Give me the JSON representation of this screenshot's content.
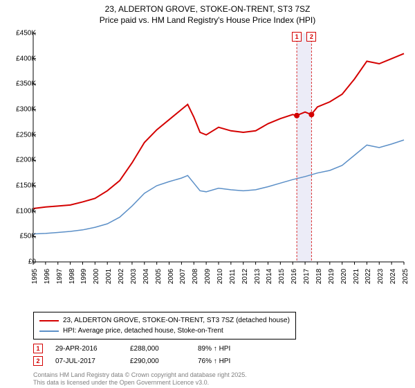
{
  "title_line1": "23, ALDERTON GROVE, STOKE-ON-TRENT, ST3 7SZ",
  "title_line2": "Price paid vs. HM Land Registry's House Price Index (HPI)",
  "chart": {
    "type": "line",
    "background_color": "#ffffff",
    "grid_color": "#000000",
    "axis_color": "#000000",
    "ylim": [
      0,
      450000
    ],
    "ytick_step": 50000,
    "y_ticks": [
      "£0",
      "£50K",
      "£100K",
      "£150K",
      "£200K",
      "£250K",
      "£300K",
      "£350K",
      "£400K",
      "£450K"
    ],
    "x_range": [
      1995,
      2025
    ],
    "x_ticks": [
      "1995",
      "1996",
      "1997",
      "1998",
      "1999",
      "2000",
      "2001",
      "2002",
      "2003",
      "2004",
      "2005",
      "2006",
      "2007",
      "2008",
      "2009",
      "2010",
      "2011",
      "2012",
      "2013",
      "2014",
      "2015",
      "2016",
      "2017",
      "2018",
      "2019",
      "2020",
      "2021",
      "2022",
      "2023",
      "2024",
      "2025"
    ],
    "label_fontsize": 10,
    "series": [
      {
        "name": "price_paid",
        "color": "#d40000",
        "line_width": 2,
        "data": [
          [
            1995,
            105000
          ],
          [
            1996,
            108000
          ],
          [
            1997,
            110000
          ],
          [
            1998,
            112000
          ],
          [
            1999,
            118000
          ],
          [
            2000,
            125000
          ],
          [
            2001,
            140000
          ],
          [
            2002,
            160000
          ],
          [
            2003,
            195000
          ],
          [
            2004,
            235000
          ],
          [
            2005,
            260000
          ],
          [
            2006,
            280000
          ],
          [
            2007,
            300000
          ],
          [
            2007.5,
            310000
          ],
          [
            2008,
            285000
          ],
          [
            2008.5,
            255000
          ],
          [
            2009,
            250000
          ],
          [
            2010,
            265000
          ],
          [
            2011,
            258000
          ],
          [
            2012,
            255000
          ],
          [
            2013,
            258000
          ],
          [
            2014,
            272000
          ],
          [
            2015,
            282000
          ],
          [
            2016,
            290000
          ],
          [
            2016.3,
            288000
          ],
          [
            2017,
            295000
          ],
          [
            2017.5,
            290000
          ],
          [
            2018,
            305000
          ],
          [
            2019,
            315000
          ],
          [
            2020,
            330000
          ],
          [
            2021,
            360000
          ],
          [
            2022,
            395000
          ],
          [
            2023,
            390000
          ],
          [
            2024,
            400000
          ],
          [
            2025,
            410000
          ]
        ]
      },
      {
        "name": "hpi",
        "color": "#5b8fc7",
        "line_width": 1.5,
        "data": [
          [
            1995,
            55000
          ],
          [
            1996,
            56000
          ],
          [
            1997,
            58000
          ],
          [
            1998,
            60000
          ],
          [
            1999,
            63000
          ],
          [
            2000,
            68000
          ],
          [
            2001,
            75000
          ],
          [
            2002,
            88000
          ],
          [
            2003,
            110000
          ],
          [
            2004,
            135000
          ],
          [
            2005,
            150000
          ],
          [
            2006,
            158000
          ],
          [
            2007,
            165000
          ],
          [
            2007.5,
            170000
          ],
          [
            2008,
            155000
          ],
          [
            2008.5,
            140000
          ],
          [
            2009,
            138000
          ],
          [
            2010,
            145000
          ],
          [
            2011,
            142000
          ],
          [
            2012,
            140000
          ],
          [
            2013,
            142000
          ],
          [
            2014,
            148000
          ],
          [
            2015,
            155000
          ],
          [
            2016,
            162000
          ],
          [
            2017,
            168000
          ],
          [
            2018,
            175000
          ],
          [
            2019,
            180000
          ],
          [
            2020,
            190000
          ],
          [
            2021,
            210000
          ],
          [
            2022,
            230000
          ],
          [
            2023,
            225000
          ],
          [
            2024,
            232000
          ],
          [
            2025,
            240000
          ]
        ]
      }
    ],
    "sale_markers": [
      {
        "label": "1",
        "year": 2016.33,
        "price": 288000,
        "color": "#d40000"
      },
      {
        "label": "2",
        "year": 2017.52,
        "price": 290000,
        "color": "#d40000"
      }
    ],
    "highlight_band": {
      "x_start": 2016.33,
      "x_end": 2017.52,
      "fill": "#ececf7"
    }
  },
  "legend": {
    "items": [
      {
        "color": "#d40000",
        "label": "23, ALDERTON GROVE, STOKE-ON-TRENT, ST3 7SZ (detached house)"
      },
      {
        "color": "#5b8fc7",
        "label": "HPI: Average price, detached house, Stoke-on-Trent"
      }
    ]
  },
  "marker_table": [
    {
      "badge": "1",
      "badge_color": "#d40000",
      "date": "29-APR-2016",
      "price": "£288,000",
      "pct": "89% ↑ HPI"
    },
    {
      "badge": "2",
      "badge_color": "#d40000",
      "date": "07-JUL-2017",
      "price": "£290,000",
      "pct": "76% ↑ HPI"
    }
  ],
  "footer_line1": "Contains HM Land Registry data © Crown copyright and database right 2025.",
  "footer_line2": "This data is licensed under the Open Government Licence v3.0."
}
